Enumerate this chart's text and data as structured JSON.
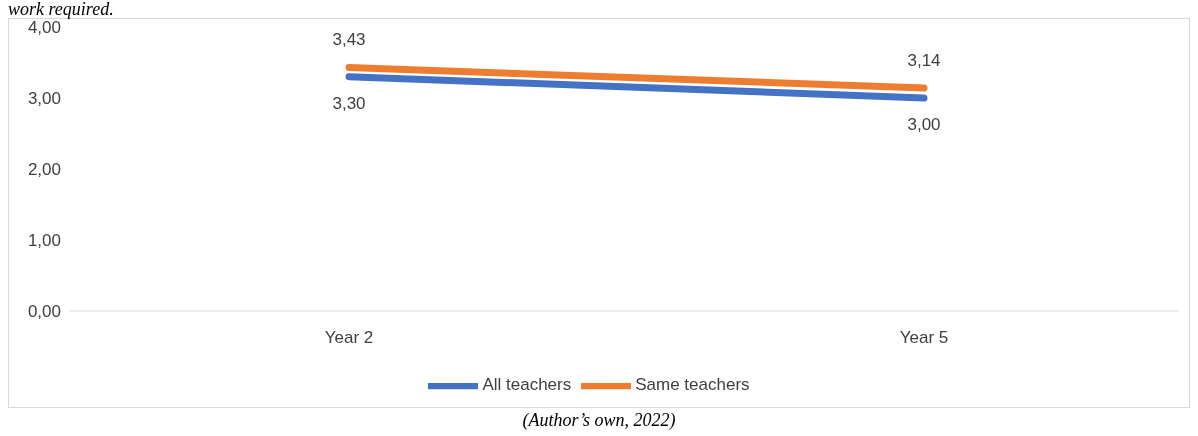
{
  "chart_data": {
    "type": "line",
    "title": "work required.",
    "categories": [
      "Year 2",
      "Year 5"
    ],
    "series": [
      {
        "name": "All teachers",
        "color": "#4472c4",
        "values": [
          3.3,
          3.0
        ],
        "value_labels": [
          "3,30",
          "3,00"
        ]
      },
      {
        "name": "Same teachers",
        "color": "#ed7d31",
        "values": [
          3.43,
          3.14
        ],
        "value_labels": [
          "3,43",
          "3,14"
        ]
      }
    ],
    "ylim": [
      0,
      4
    ],
    "yticks": [
      {
        "value": 0,
        "label": "0,00"
      },
      {
        "value": 1,
        "label": "1,00"
      },
      {
        "value": 2,
        "label": "2,00"
      },
      {
        "value": 3,
        "label": "3,00"
      },
      {
        "value": 4,
        "label": "4,00"
      }
    ],
    "grid": false,
    "legend": "bottom",
    "marker": "none",
    "line_style": "solid",
    "annotations": [
      "(Author’s own, 2022)"
    ]
  }
}
